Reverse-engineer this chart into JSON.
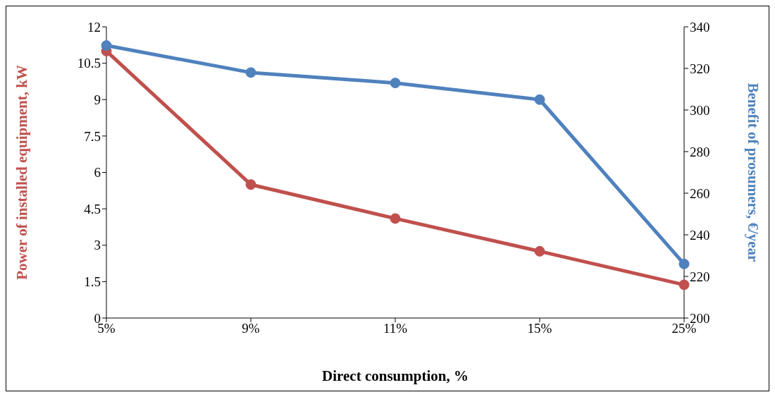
{
  "chart_data": {
    "type": "line",
    "xlabel": "Direct consumption, %",
    "ylabel": "Power of installed equipment, kW",
    "y2label": "Benefit of prosumers, €/year",
    "categories": [
      "5%",
      "9%",
      "11%",
      "15%",
      "25%"
    ],
    "series": [
      {
        "color": "#c0504d",
        "values": [
          11,
          5.5,
          4.1,
          2.75,
          1.37
        ]
      },
      {
        "color": "#4f81bd",
        "axis": "y2",
        "values": [
          331,
          318,
          313,
          305,
          226
        ]
      }
    ],
    "ylim": [
      0,
      12
    ],
    "yticks": [
      0,
      1.5,
      3,
      4.5,
      6,
      7.5,
      9,
      10.5,
      12
    ],
    "y2lim": [
      200,
      340
    ],
    "y2ticks": [
      200,
      220,
      240,
      260,
      280,
      300,
      320,
      340
    ],
    "marker": "circle",
    "line_style": "solid"
  }
}
